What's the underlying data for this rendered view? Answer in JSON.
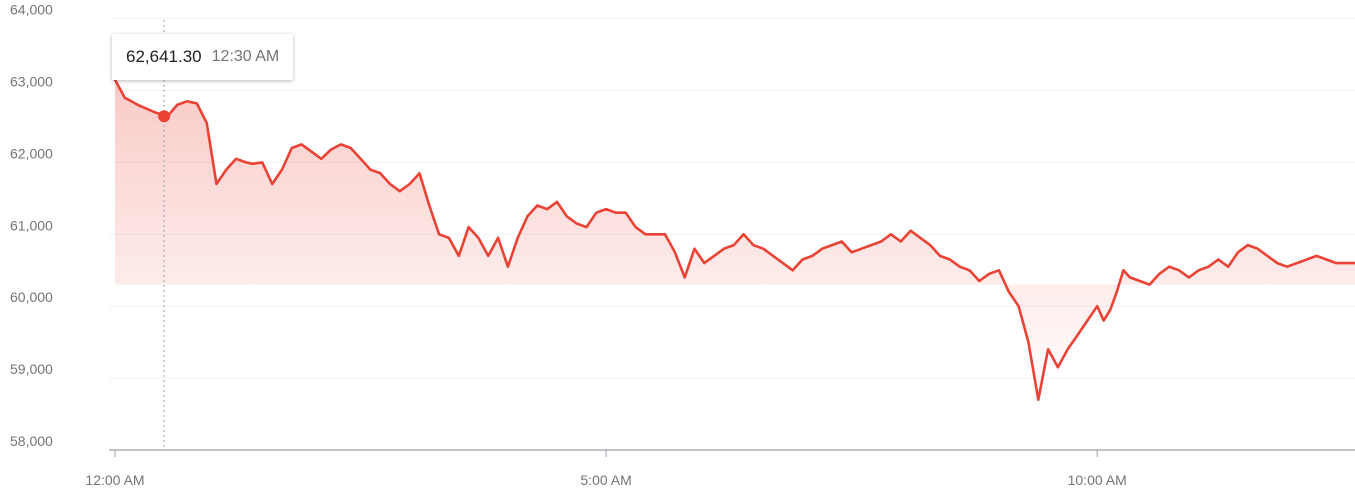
{
  "chart_data": {
    "type": "area",
    "title": "",
    "xlabel": "",
    "ylabel": "",
    "ylim": [
      58000,
      64000
    ],
    "y_ticks": [
      "64,000",
      "63,000",
      "62,000",
      "61,000",
      "60,000",
      "59,000",
      "58,000"
    ],
    "y_tick_values": [
      64000,
      63000,
      62000,
      61000,
      60000,
      59000,
      58000
    ],
    "x_ticks": [
      "12:00 AM",
      "5:00 AM",
      "10:00 AM"
    ],
    "x_tick_values": [
      0,
      300,
      600
    ],
    "x_domain_minutes": [
      0,
      758
    ],
    "grid": true,
    "line_color": "#ea4335",
    "series": [
      {
        "x": [
          0,
          6,
          14,
          24,
          32,
          38,
          44,
          50,
          56,
          62,
          68,
          74,
          80,
          84,
          90,
          96,
          102,
          108,
          114,
          120,
          126,
          132,
          138,
          144,
          150,
          156,
          162,
          168,
          174,
          180,
          186,
          192,
          198,
          204,
          210,
          216,
          222,
          228,
          234,
          240,
          246,
          252,
          258,
          264,
          270,
          276,
          282,
          288,
          294,
          300,
          306,
          312,
          318,
          324,
          330,
          336,
          342,
          348,
          354,
          360,
          366,
          372,
          378,
          384,
          390,
          396,
          402,
          408,
          414,
          420,
          426,
          432,
          438,
          444,
          450,
          456,
          462,
          468,
          474,
          480,
          486,
          492,
          498,
          504,
          510,
          516,
          522,
          528,
          534,
          540,
          546,
          552,
          558,
          564,
          570,
          576,
          582,
          588,
          594,
          600,
          604,
          608,
          612,
          616,
          620,
          626,
          632,
          638,
          644,
          650,
          656,
          662,
          668,
          674,
          680,
          686,
          692,
          698,
          704,
          710,
          716,
          722,
          728,
          734,
          740,
          746,
          752,
          758
        ],
        "values": [
          63150,
          62900,
          62800,
          62700,
          62641,
          62800,
          62850,
          62820,
          62550,
          61700,
          61900,
          62050,
          62000,
          61980,
          62000,
          61700,
          61900,
          62200,
          62250,
          62150,
          62050,
          62180,
          62250,
          62200,
          62050,
          61900,
          61850,
          61700,
          61600,
          61700,
          61850,
          61400,
          61000,
          60950,
          60700,
          61100,
          60950,
          60700,
          60950,
          60550,
          60950,
          61250,
          61400,
          61350,
          61450,
          61250,
          61150,
          61100,
          61300,
          61350,
          61300,
          61300,
          61100,
          61000,
          61000,
          61000,
          60750,
          60400,
          60800,
          60600,
          60700,
          60800,
          60850,
          61000,
          60850,
          60800,
          60700,
          60600,
          60500,
          60650,
          60700,
          60800,
          60850,
          60900,
          60750,
          60800,
          60850,
          60900,
          61000,
          60900,
          61050,
          60950,
          60850,
          60700,
          60650,
          60550,
          60500,
          60350,
          60450,
          60500,
          60200,
          60000,
          59500,
          58700,
          59400,
          59150,
          59400,
          59600,
          59800,
          60000,
          59800,
          59950,
          60200,
          60500,
          60400,
          60350,
          60300,
          60450,
          60550,
          60500,
          60400,
          60500,
          60550,
          60650,
          60550,
          60750,
          60850,
          60800,
          60700,
          60600,
          60550,
          60600,
          60650,
          60700,
          60650,
          60600,
          60600,
          60600
        ]
      }
    ],
    "tooltip": {
      "value": "62,641.30",
      "time": "12:30 AM",
      "x": 30,
      "y": 62641.3
    }
  }
}
